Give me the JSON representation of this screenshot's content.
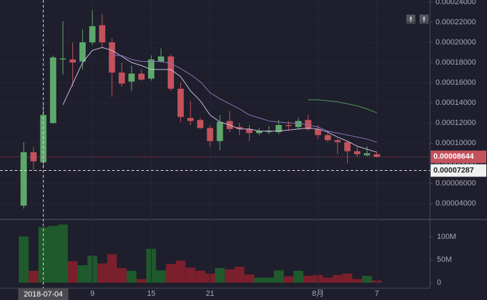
{
  "chart_data": {
    "type": "candlestick",
    "categories": [
      null,
      null,
      "2018-07-04",
      null,
      null,
      null,
      null,
      "9",
      null,
      null,
      null,
      null,
      null,
      "15",
      null,
      null,
      null,
      null,
      null,
      "21",
      null,
      null,
      null,
      null,
      null,
      null,
      null,
      null,
      null,
      null,
      "8月",
      null,
      null,
      null,
      null,
      null,
      "7"
    ],
    "open": [
      3.8e-05,
      9.1e-05,
      8.1e-05,
      0.00012,
      0.000183,
      0.000183,
      0.000181,
      0.0002,
      0.000217,
      0.0002,
      0.00017,
      0.000161,
      0.000169,
      0.000164,
      0.000181,
      0.000186,
      0.000154,
      0.000125,
      0.000123,
      0.000115,
      0.000102,
      0.000122,
      0.000116,
      0.000114,
      0.00011,
      0.000111,
      0.000111,
      0.000118,
      0.000116,
      0.000123,
      0.000114,
      0.000108,
      0.000103,
      0.000101,
      9.2e-05,
      8.8e-05,
      8.9e-05
    ],
    "high": [
      0.000101,
      9.6e-05,
      0.000139,
      0.000187,
      0.000221,
      0.0002,
      0.000213,
      0.000232,
      0.000228,
      0.000204,
      0.00018,
      0.000177,
      0.000173,
      0.000187,
      0.000194,
      0.000188,
      0.00016,
      0.000142,
      0.000125,
      0.000118,
      0.000128,
      0.000132,
      0.00012,
      0.000118,
      0.000115,
      0.000117,
      0.000123,
      0.000122,
      0.000125,
      0.000128,
      0.000118,
      0.000112,
      0.000104,
      0.000102,
      9.6e-05,
      9.7e-05,
      9.1e-05
    ],
    "low": [
      3.5e-05,
      7.3e-05,
      7.6e-05,
      0.000119,
      0.000168,
      0.000156,
      0.000173,
      0.000197,
      0.000194,
      0.000146,
      0.000156,
      0.000152,
      0.000162,
      0.000162,
      0.00018,
      0.000152,
      0.000121,
      0.000118,
      0.000114,
      9.6e-05,
      9.3e-05,
      0.000111,
      0.000108,
      0.000102,
      0.000108,
      0.000109,
      0.000109,
      0.000112,
      0.000114,
      0.000112,
      0.000104,
      0.000101,
      8.9e-05,
      8e-05,
      8.6e-05,
      8.7e-05,
      8.6e-05
    ],
    "close": [
      9.1e-05,
      8.2e-05,
      0.000128,
      0.000185,
      0.000184,
      0.00018,
      0.0002,
      0.000216,
      0.0002,
      0.00017,
      0.000159,
      0.000169,
      0.000163,
      0.000183,
      0.000186,
      0.000154,
      0.000126,
      0.000122,
      0.000115,
      0.000102,
      0.000121,
      0.000114,
      0.000114,
      0.00011,
      0.000112,
      0.000112,
      0.000118,
      0.000117,
      0.000122,
      0.000114,
      0.000108,
      0.000103,
      0.000101,
      9.2e-05,
      8.9e-05,
      9e-05,
      8.644e-05
    ],
    "up_color": "#5ea86c",
    "down_color": "#c4525c",
    "ylim": [
      2.5e-05,
      0.000242
    ],
    "yticks": [
      {
        "value": 4e-05,
        "label": "0.00004000"
      },
      {
        "value": 6e-05,
        "label": "0.00006000"
      },
      {
        "value": 8e-05,
        "label": "0.00008000"
      },
      {
        "value": 0.0001,
        "label": "0.00010000"
      },
      {
        "value": 0.00012,
        "label": "0.00012000"
      },
      {
        "value": 0.00014,
        "label": "0.00014000"
      },
      {
        "value": 0.00016,
        "label": "0.00016000"
      },
      {
        "value": 0.00018,
        "label": "0.00018000"
      },
      {
        "value": 0.0002,
        "label": "0.00020000"
      },
      {
        "value": 0.00022,
        "label": "0.00022000"
      },
      {
        "value": 0.00024,
        "label": "0.00024000"
      }
    ],
    "series": [
      {
        "color": "#c9bde0",
        "values": [
          null,
          null,
          null,
          null,
          0.000138,
          0.000159,
          0.00018,
          0.000192,
          0.000195,
          0.000192,
          0.000186,
          0.00018,
          0.000177,
          0.000173,
          0.000173,
          0.000173,
          0.000166,
          0.000152,
          0.000142,
          0.000128,
          0.000121,
          0.000118,
          0.000114,
          0.000114,
          0.000112,
          0.000112,
          0.000112,
          0.000113,
          0.000114,
          0.000115,
          0.000114,
          0.000111,
          0.000106,
          0.000102,
          9.7e-05,
          9.4e-05,
          9.1e-05
        ]
      },
      {
        "color": "#8a74b8",
        "values": [
          null,
          null,
          null,
          null,
          null,
          null,
          null,
          null,
          null,
          0.000187,
          0.000187,
          0.000183,
          0.000181,
          0.000181,
          0.000181,
          0.000179,
          0.000174,
          0.000168,
          0.000161,
          0.00015,
          0.000144,
          0.000139,
          0.000134,
          0.000128,
          0.000125,
          0.000122,
          0.000121,
          0.00012,
          0.00012,
          0.000118,
          0.000116,
          0.000112,
          0.00011,
          0.000108,
          0.000106,
          0.000104,
          0.000101
        ]
      },
      {
        "color": "#4f9a5c",
        "values": [
          null,
          null,
          null,
          null,
          null,
          null,
          null,
          null,
          null,
          null,
          null,
          null,
          null,
          null,
          null,
          null,
          null,
          null,
          null,
          null,
          null,
          null,
          null,
          null,
          null,
          null,
          null,
          null,
          null,
          0.000143,
          0.000143,
          0.000142,
          0.000141,
          0.000139,
          0.000137,
          0.000134,
          0.00013
        ]
      }
    ],
    "last_price": {
      "value": 8.644e-05,
      "label": "0.00008644"
    },
    "crosshair": {
      "value": 7.287e-05,
      "label": "0.00007287"
    },
    "volume": {
      "values": [
        101000000,
        26000000,
        121000000,
        124000000,
        127000000,
        47000000,
        38000000,
        59000000,
        42000000,
        62000000,
        32000000,
        26000000,
        8000000,
        74000000,
        27000000,
        41000000,
        48000000,
        33000000,
        26000000,
        20000000,
        32000000,
        29000000,
        35000000,
        18000000,
        11000000,
        11000000,
        27000000,
        14000000,
        26000000,
        15000000,
        17000000,
        11000000,
        17000000,
        20000000,
        8000000,
        15000000,
        5000000
      ],
      "up_color": "#1f5a2c",
      "down_color": "#7a1f2b",
      "ylim": [
        -12000000,
        138000000
      ],
      "yticks": [
        0,
        {
          "value": 50000000,
          "label": "50M"
        },
        {
          "value": 100000000,
          "label": "100M"
        }
      ]
    }
  }
}
